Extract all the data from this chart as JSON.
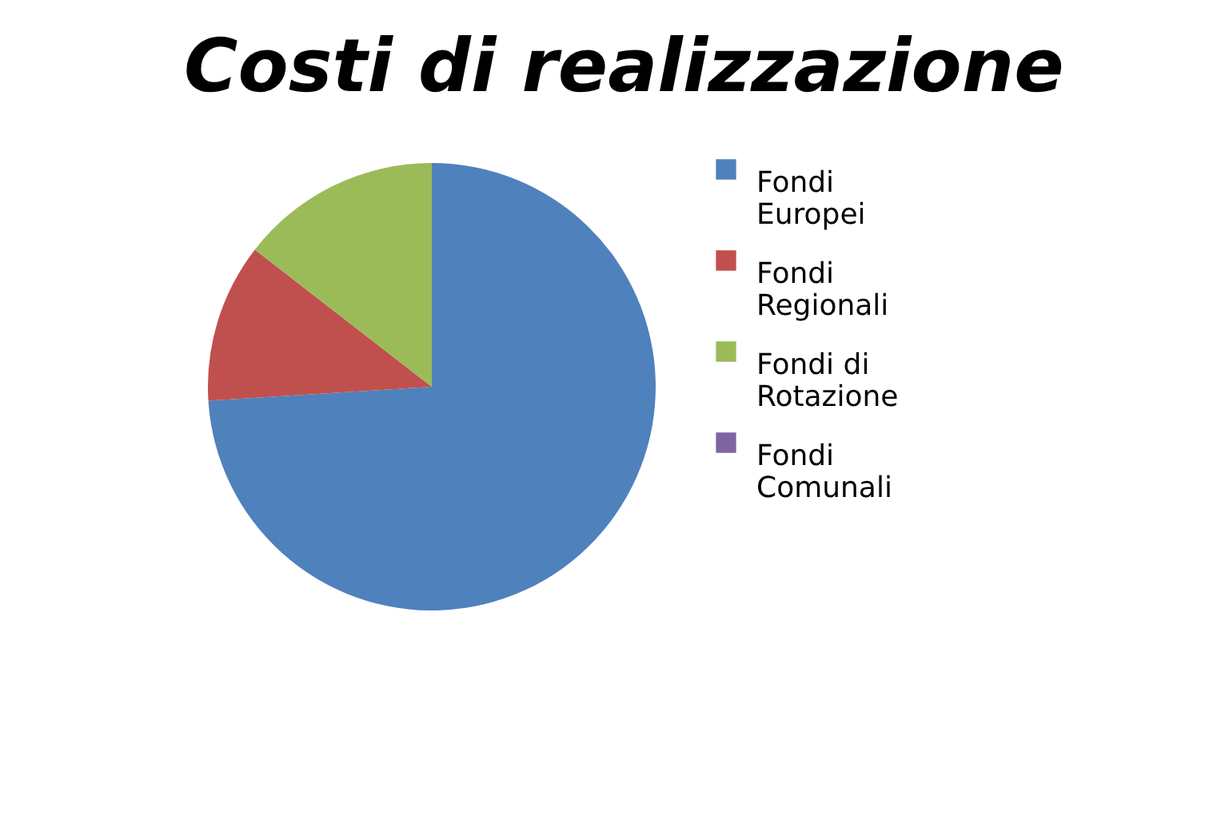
{
  "chart_data": {
    "type": "pie",
    "title": "Costi di realizzazione",
    "categories": [
      "Fondi Europei",
      "Fondi Regionali",
      "Fondi di Rotazione",
      "Fondi Comunali"
    ],
    "values": [
      74,
      11.5,
      14.5,
      0
    ],
    "colors": [
      "#4f81bd",
      "#c0504d",
      "#9bbb59",
      "#8064a2"
    ],
    "legend": "right"
  }
}
